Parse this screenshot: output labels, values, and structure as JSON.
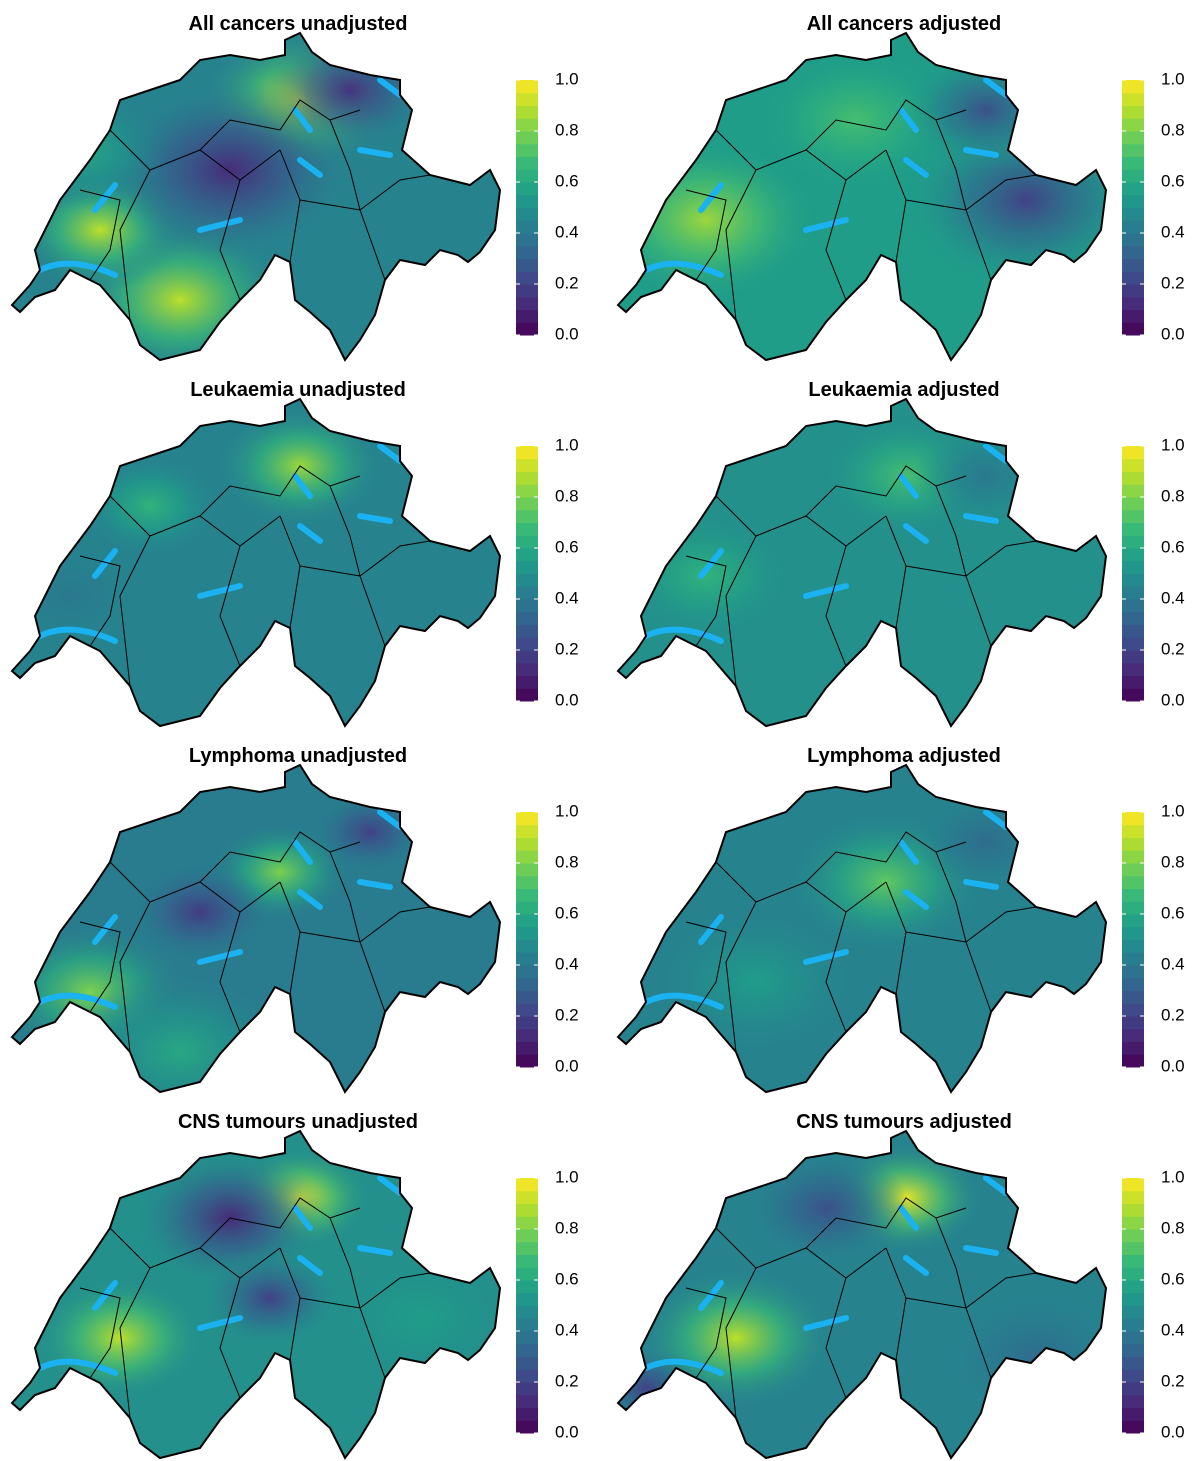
{
  "panels": [
    {
      "title": "All cancers unadjusted",
      "colorbar_ticks": [
        {
          "value": 0,
          "label": "0.0"
        },
        {
          "value": 0.2,
          "label": "0.2"
        },
        {
          "value": 0.4,
          "label": "0.4"
        },
        {
          "value": 0.6,
          "label": "0.6"
        },
        {
          "value": 0.8,
          "label": "0.8"
        },
        {
          "value": 1,
          "label": "1.0"
        }
      ]
    },
    {
      "title": "All cancers adjusted",
      "colorbar_ticks": [
        {
          "value": 0,
          "label": "0.0"
        },
        {
          "value": 0.2,
          "label": "0.2"
        },
        {
          "value": 0.4,
          "label": "0.4"
        },
        {
          "value": 0.6,
          "label": "0.6"
        },
        {
          "value": 0.8,
          "label": "0.8"
        },
        {
          "value": 1,
          "label": "1.0"
        }
      ]
    },
    {
      "title": "Leukaemia unadjusted",
      "colorbar_ticks": [
        {
          "value": 0,
          "label": "0.0"
        },
        {
          "value": 0.2,
          "label": "0.2"
        },
        {
          "value": 0.4,
          "label": "0.4"
        },
        {
          "value": 0.6,
          "label": "0.6"
        },
        {
          "value": 0.8,
          "label": "0.8"
        },
        {
          "value": 1,
          "label": "1.0"
        }
      ]
    },
    {
      "title": "Leukaemia adjusted",
      "colorbar_ticks": [
        {
          "value": 0,
          "label": "0.0"
        },
        {
          "value": 0.2,
          "label": "0.2"
        },
        {
          "value": 0.4,
          "label": "0.4"
        },
        {
          "value": 0.6,
          "label": "0.6"
        },
        {
          "value": 0.8,
          "label": "0.8"
        },
        {
          "value": 1,
          "label": "1.0"
        }
      ]
    },
    {
      "title": "Lymphoma unadjusted",
      "colorbar_ticks": [
        {
          "value": 0,
          "label": "0.0"
        },
        {
          "value": 0.2,
          "label": "0.2"
        },
        {
          "value": 0.4,
          "label": "0.4"
        },
        {
          "value": 0.6,
          "label": "0.6"
        },
        {
          "value": 0.8,
          "label": "0.8"
        },
        {
          "value": 1,
          "label": "1.0"
        }
      ]
    },
    {
      "title": "Lymphoma adjusted",
      "colorbar_ticks": [
        {
          "value": 0,
          "label": "0.0"
        },
        {
          "value": 0.2,
          "label": "0.2"
        },
        {
          "value": 0.4,
          "label": "0.4"
        },
        {
          "value": 0.6,
          "label": "0.6"
        },
        {
          "value": 0.8,
          "label": "0.8"
        },
        {
          "value": 1,
          "label": "1.0"
        }
      ]
    },
    {
      "title": "CNS tumours unadjusted",
      "colorbar_ticks": [
        {
          "value": 0,
          "label": "0.0"
        },
        {
          "value": 0.2,
          "label": "0.2"
        },
        {
          "value": 0.4,
          "label": "0.4"
        },
        {
          "value": 0.6,
          "label": "0.6"
        },
        {
          "value": 0.8,
          "label": "0.8"
        },
        {
          "value": 1,
          "label": "1.0"
        }
      ]
    },
    {
      "title": "CNS tumours adjusted",
      "colorbar_ticks": [
        {
          "value": 0,
          "label": "0.0"
        },
        {
          "value": 0.2,
          "label": "0.2"
        },
        {
          "value": 0.4,
          "label": "0.4"
        },
        {
          "value": 0.6,
          "label": "0.6"
        },
        {
          "value": 0.8,
          "label": "0.8"
        },
        {
          "value": 1,
          "label": "1.0"
        }
      ]
    }
  ]
}
